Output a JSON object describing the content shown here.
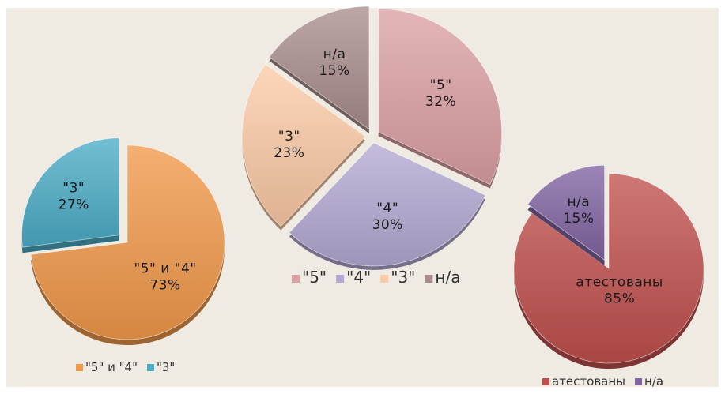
{
  "chart_data": [
    {
      "type": "pie",
      "categories": [
        "\"5\" и \"4\"",
        "\"3\""
      ],
      "values": [
        73,
        27
      ],
      "labels": [
        "73%",
        "27%"
      ],
      "colors": [
        "#f2994a",
        "#4bacc6"
      ],
      "legend": [
        "\"5\" и \"4\"",
        "\"3\""
      ],
      "legend_position": "bottom",
      "exploded": [
        "\"3\""
      ]
    },
    {
      "type": "pie",
      "categories": [
        "\"5\"",
        "\"4\"",
        "\"3\"",
        "н/а"
      ],
      "values": [
        32,
        30,
        23,
        15
      ],
      "labels": [
        "32%",
        "30%",
        "23%",
        "15%"
      ],
      "colors": [
        "#dca0a4",
        "#b4a9d3",
        "#fccaa6",
        "#a98d8d"
      ],
      "legend": [
        "\"5\"",
        "\"4\"",
        "\"3\"",
        "н/а"
      ],
      "legend_position": "bottom",
      "exploded": [
        "\"5\"",
        "\"4\"",
        "\"3\"",
        "н/а"
      ]
    },
    {
      "type": "pie",
      "categories": [
        "атестованы",
        "н/а"
      ],
      "values": [
        85,
        15
      ],
      "labels": [
        "85%",
        "15%"
      ],
      "colors": [
        "#c0504d",
        "#8064a2"
      ],
      "legend": [
        "атестованы",
        "н/а"
      ],
      "legend_position": "bottom",
      "exploded": [
        "н/а"
      ]
    }
  ]
}
